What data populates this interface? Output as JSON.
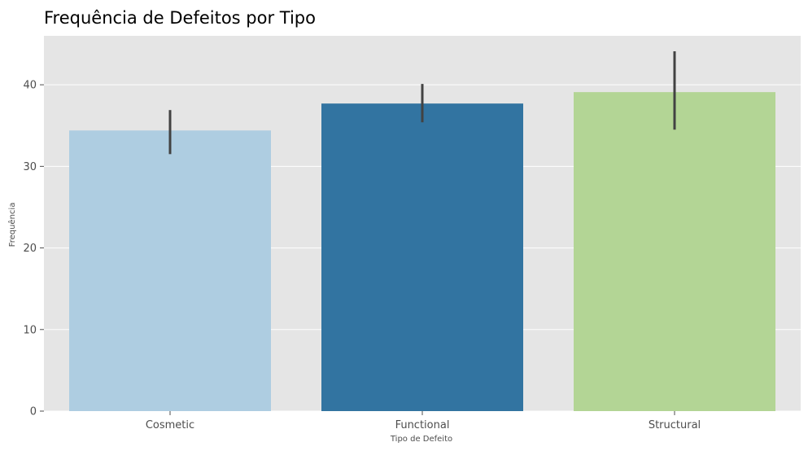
{
  "chart_data": {
    "type": "bar",
    "title": "Frequência de Defeitos por Tipo",
    "xlabel": "Tipo de Defeito",
    "ylabel": "Frequência",
    "categories": [
      "Cosmetic",
      "Functional",
      "Structural"
    ],
    "values": [
      34.4,
      37.7,
      39.1
    ],
    "error_bars": [
      [
        31.5,
        36.9
      ],
      [
        35.4,
        40.1
      ],
      [
        34.5,
        44.1
      ]
    ],
    "ylim": [
      0,
      46
    ],
    "yticks": [
      0,
      10,
      20,
      30,
      40
    ],
    "grid": true,
    "colors": [
      "#aecde1",
      "#3274a1",
      "#b3d595"
    ],
    "background": "#e5e5e5",
    "errorbar_color": "#424242"
  }
}
